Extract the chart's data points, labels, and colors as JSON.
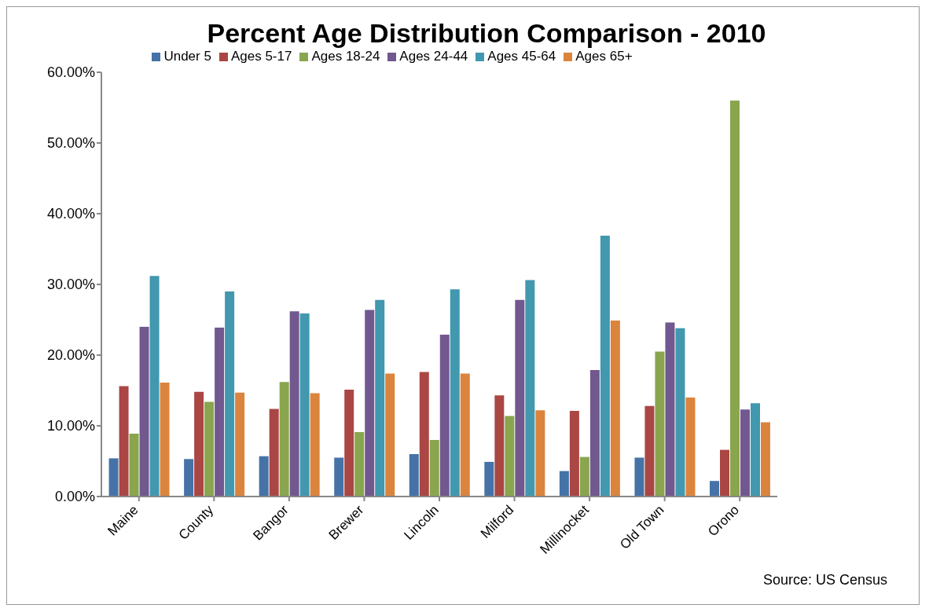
{
  "chart_data": {
    "type": "bar",
    "title": "Percent Age Distribution Comparison - 2010",
    "categories": [
      "Maine",
      "County",
      "Bangor",
      "Brewer",
      "Lincoln",
      "Milford",
      "Millinocket",
      "Old Town",
      "Orono"
    ],
    "series": [
      {
        "name": "Under 5",
        "color": "#4572a7",
        "values": [
          5.4,
          5.3,
          5.7,
          5.5,
          6.0,
          4.9,
          3.6,
          5.5,
          2.2
        ]
      },
      {
        "name": "Ages 5-17",
        "color": "#aa4643",
        "values": [
          15.6,
          14.8,
          12.4,
          15.1,
          17.6,
          14.3,
          12.1,
          12.8,
          6.6
        ]
      },
      {
        "name": "Ages 18-24",
        "color": "#89a54e",
        "values": [
          8.9,
          13.4,
          16.2,
          9.1,
          8.0,
          11.4,
          5.6,
          20.5,
          56.0
        ]
      },
      {
        "name": "Ages 24-44",
        "color": "#71588f",
        "values": [
          24.0,
          23.9,
          26.2,
          26.4,
          22.9,
          27.8,
          17.9,
          24.6,
          12.3
        ]
      },
      {
        "name": "Ages 45-64",
        "color": "#4198af",
        "values": [
          31.2,
          29.0,
          25.9,
          27.8,
          29.3,
          30.6,
          36.9,
          23.8,
          13.2
        ]
      },
      {
        "name": "Ages 65+",
        "color": "#db843d",
        "values": [
          16.1,
          14.7,
          14.6,
          17.4,
          17.4,
          12.2,
          24.9,
          14.0,
          10.5
        ]
      }
    ],
    "ylim": [
      0,
      60
    ],
    "yticks": [
      {
        "value": 0,
        "label": "0.00%"
      },
      {
        "value": 10,
        "label": "10.00%"
      },
      {
        "value": 20,
        "label": "20.00%"
      },
      {
        "value": 30,
        "label": "30.00%"
      },
      {
        "value": 40,
        "label": "40.00%"
      },
      {
        "value": 50,
        "label": "50.00%"
      },
      {
        "value": 60,
        "label": "60.00%"
      }
    ],
    "grid": false,
    "legend": "top",
    "annotations": [
      "Source: US Census"
    ]
  }
}
